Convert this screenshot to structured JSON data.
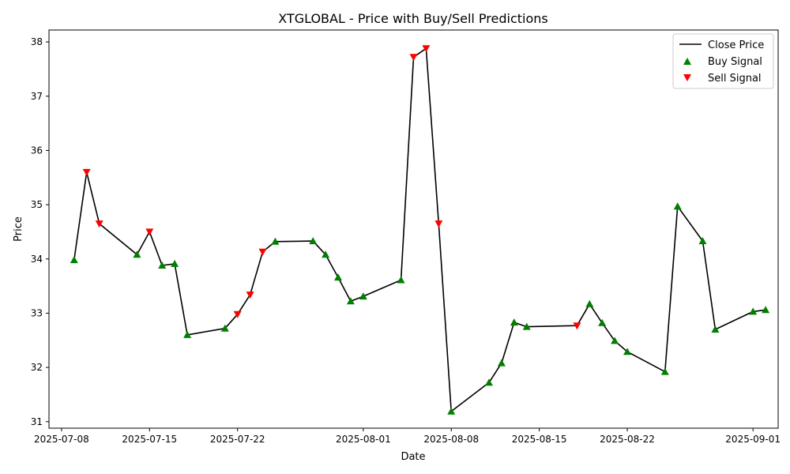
{
  "chart_data": {
    "type": "line",
    "title": "XTGLOBAL - Price with Buy/Sell Predictions",
    "xlabel": "Date",
    "ylabel": "Price",
    "xlim": [
      "2025-07-07",
      "2025-09-03"
    ],
    "ylim": [
      30.88,
      38.22
    ],
    "grid": false,
    "legend_position": "top-right",
    "x_ticks": [
      "2025-07-08",
      "2025-07-15",
      "2025-07-22",
      "2025-08-01",
      "2025-08-08",
      "2025-08-15",
      "2025-08-22",
      "2025-09-01"
    ],
    "y_ticks": [
      31,
      32,
      33,
      34,
      35,
      36,
      37,
      38
    ],
    "series": [
      {
        "name": "Close Price",
        "kind": "line",
        "color": "#000000",
        "points": [
          [
            "2025-07-09",
            33.98
          ],
          [
            "2025-07-10",
            35.6
          ],
          [
            "2025-07-11",
            34.65
          ],
          [
            "2025-07-14",
            34.08
          ],
          [
            "2025-07-15",
            34.5
          ],
          [
            "2025-07-16",
            33.88
          ],
          [
            "2025-07-17",
            33.91
          ],
          [
            "2025-07-18",
            32.6
          ],
          [
            "2025-07-21",
            32.72
          ],
          [
            "2025-07-22",
            32.98
          ],
          [
            "2025-07-23",
            33.34
          ],
          [
            "2025-07-24",
            34.13
          ],
          [
            "2025-07-25",
            34.32
          ],
          [
            "2025-07-28",
            34.33
          ],
          [
            "2025-07-29",
            34.08
          ],
          [
            "2025-07-30",
            33.66
          ],
          [
            "2025-07-31",
            33.22
          ],
          [
            "2025-08-01",
            33.31
          ],
          [
            "2025-08-04",
            33.61
          ],
          [
            "2025-08-05",
            37.72
          ],
          [
            "2025-08-06",
            37.88
          ],
          [
            "2025-08-07",
            34.65
          ],
          [
            "2025-08-08",
            31.19
          ],
          [
            "2025-08-11",
            31.72
          ],
          [
            "2025-08-12",
            32.08
          ],
          [
            "2025-08-13",
            32.83
          ],
          [
            "2025-08-14",
            32.75
          ],
          [
            "2025-08-18",
            32.77
          ],
          [
            "2025-08-19",
            33.17
          ],
          [
            "2025-08-20",
            32.82
          ],
          [
            "2025-08-21",
            32.49
          ],
          [
            "2025-08-22",
            32.29
          ],
          [
            "2025-08-25",
            31.92
          ],
          [
            "2025-08-26",
            34.97
          ],
          [
            "2025-08-28",
            34.33
          ],
          [
            "2025-08-29",
            32.7
          ],
          [
            "2025-09-01",
            33.03
          ],
          [
            "2025-09-02",
            33.06
          ]
        ]
      },
      {
        "name": "Buy Signal",
        "kind": "marker-up",
        "color": "#008000",
        "points": [
          [
            "2025-07-09",
            33.98
          ],
          [
            "2025-07-14",
            34.08
          ],
          [
            "2025-07-16",
            33.88
          ],
          [
            "2025-07-17",
            33.91
          ],
          [
            "2025-07-18",
            32.6
          ],
          [
            "2025-07-21",
            32.72
          ],
          [
            "2025-07-25",
            34.32
          ],
          [
            "2025-07-28",
            34.33
          ],
          [
            "2025-07-29",
            34.08
          ],
          [
            "2025-07-30",
            33.66
          ],
          [
            "2025-07-31",
            33.22
          ],
          [
            "2025-08-01",
            33.31
          ],
          [
            "2025-08-04",
            33.61
          ],
          [
            "2025-08-08",
            31.19
          ],
          [
            "2025-08-11",
            31.72
          ],
          [
            "2025-08-12",
            32.08
          ],
          [
            "2025-08-13",
            32.83
          ],
          [
            "2025-08-14",
            32.75
          ],
          [
            "2025-08-19",
            33.17
          ],
          [
            "2025-08-20",
            32.82
          ],
          [
            "2025-08-21",
            32.49
          ],
          [
            "2025-08-22",
            32.29
          ],
          [
            "2025-08-25",
            31.92
          ],
          [
            "2025-08-26",
            34.97
          ],
          [
            "2025-08-28",
            34.33
          ],
          [
            "2025-08-29",
            32.7
          ],
          [
            "2025-09-01",
            33.03
          ],
          [
            "2025-09-02",
            33.06
          ]
        ]
      },
      {
        "name": "Sell Signal",
        "kind": "marker-down",
        "color": "#ff0000",
        "points": [
          [
            "2025-07-10",
            35.6
          ],
          [
            "2025-07-11",
            34.65
          ],
          [
            "2025-07-15",
            34.5
          ],
          [
            "2025-07-22",
            32.98
          ],
          [
            "2025-07-23",
            33.34
          ],
          [
            "2025-07-24",
            34.13
          ],
          [
            "2025-08-05",
            37.72
          ],
          [
            "2025-08-06",
            37.88
          ],
          [
            "2025-08-07",
            34.65
          ],
          [
            "2025-08-18",
            32.77
          ]
        ]
      }
    ]
  }
}
